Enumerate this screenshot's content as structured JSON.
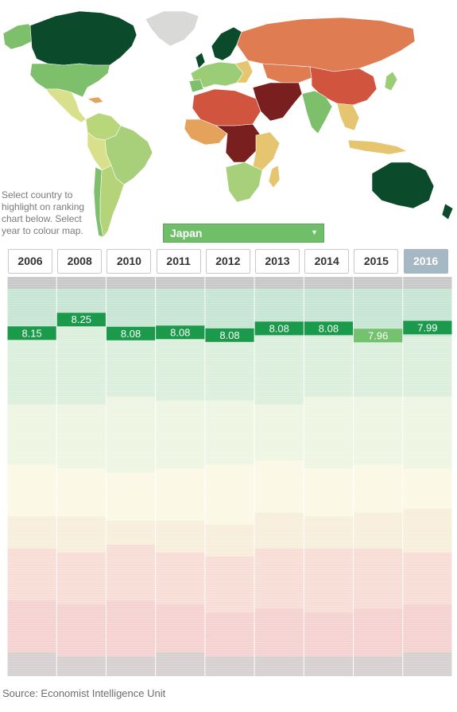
{
  "instructions": "Select country to highlight on ranking chart below. Select year to colour map.",
  "country_select": {
    "selected": "Japan",
    "caret_icon": "caret-down-icon"
  },
  "years": [
    {
      "label": "2006",
      "selected": false
    },
    {
      "label": "2008",
      "selected": false
    },
    {
      "label": "2010",
      "selected": false
    },
    {
      "label": "2011",
      "selected": false
    },
    {
      "label": "2012",
      "selected": false
    },
    {
      "label": "2013",
      "selected": false
    },
    {
      "label": "2014",
      "selected": false
    },
    {
      "label": "2015",
      "selected": false
    },
    {
      "label": "2016",
      "selected": true
    }
  ],
  "chart_data": {
    "type": "table",
    "highlighted_country": "Japan",
    "years": [
      "2006",
      "2008",
      "2010",
      "2011",
      "2012",
      "2013",
      "2014",
      "2015",
      "2016"
    ],
    "highlight_values": [
      "8.15",
      "8.25",
      "8.08",
      "8.08",
      "8.08",
      "8.08",
      "8.08",
      "7.96",
      "7.99"
    ],
    "highlight_rank_fraction": [
      0.142,
      0.108,
      0.143,
      0.14,
      0.147,
      0.13,
      0.13,
      0.148,
      0.128
    ],
    "highlight_category": [
      "full",
      "full",
      "full",
      "full",
      "full",
      "full",
      "full",
      "flawed",
      "full"
    ],
    "category_boundaries": [
      [
        0.03,
        0.15,
        0.32,
        0.47,
        0.6,
        0.68,
        0.81,
        0.94
      ],
      [
        0.03,
        0.12,
        0.32,
        0.48,
        0.6,
        0.69,
        0.82,
        0.95
      ],
      [
        0.03,
        0.14,
        0.3,
        0.49,
        0.61,
        0.67,
        0.81,
        0.95
      ],
      [
        0.03,
        0.15,
        0.31,
        0.48,
        0.61,
        0.69,
        0.82,
        0.94
      ],
      [
        0.03,
        0.14,
        0.31,
        0.47,
        0.62,
        0.7,
        0.84,
        0.95
      ],
      [
        0.03,
        0.15,
        0.32,
        0.46,
        0.59,
        0.68,
        0.83,
        0.95
      ],
      [
        0.03,
        0.15,
        0.3,
        0.48,
        0.6,
        0.68,
        0.84,
        0.95
      ],
      [
        0.03,
        0.16,
        0.3,
        0.47,
        0.59,
        0.68,
        0.83,
        0.95
      ],
      [
        0.03,
        0.15,
        0.3,
        0.48,
        0.58,
        0.69,
        0.82,
        0.94
      ]
    ],
    "band_colors": [
      "#c8c8c8",
      "#c7e5d3",
      "#dbefdc",
      "#eef6e3",
      "#fbf9e6",
      "#f7efdc",
      "#f7ddd6",
      "#f4d2d0",
      "#d6d0d0"
    ],
    "highlight_colors": {
      "full": "#1b9a4b",
      "flawed": "#74c26e"
    }
  },
  "map": {
    "colors": {
      "north_america": "#7dbf6a",
      "canada_greenland": "#0c4a2c",
      "greenland": "#d9d9d7",
      "latin_america": "#b8d67a",
      "central_america": "#d9e08c",
      "brazil": "#a8d07a",
      "argentina": "#b5d479",
      "chile": "#7dbf6a",
      "europe": "#9acd76",
      "nordic": "#0c4a2c",
      "russia": "#e07c52",
      "china": "#d1553e",
      "india": "#7dbf6a",
      "middle_east": "#7a1f1f",
      "north_africa": "#d1553e",
      "central_africa": "#7a1f1f",
      "africa_mixed": "#e5a25a",
      "southern_africa": "#a8d07a",
      "australia": "#0c4a2c",
      "se_asia": "#e5c570",
      "kazakhstan": "#e07c52",
      "japan": "#9acd76"
    }
  },
  "source": "Source: Economist Intelligence Unit"
}
